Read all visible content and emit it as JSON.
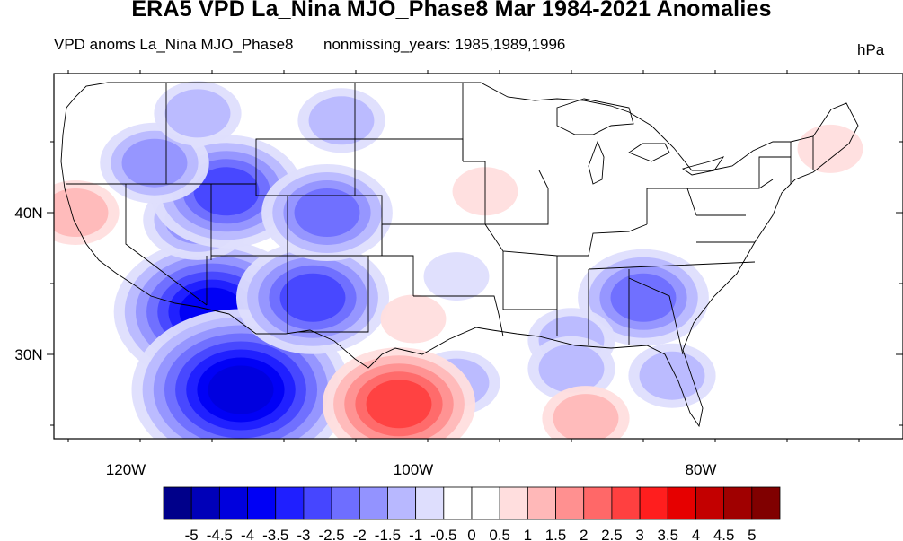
{
  "title": "ERA5 VPD La_Nina MJO_Phase8 Mar 1984-2021 Anomalies",
  "subtitle_left": "VPD anoms La_Nina MJO_Phase8",
  "subtitle_center": "nonmissing_years: 1985,1989,1996",
  "units": "hPa",
  "map": {
    "lon_range": [
      -125,
      -67
    ],
    "lat_range": [
      24,
      50
    ],
    "lat_labels": [
      {
        "lat": 40,
        "text": "40N"
      },
      {
        "lat": 30,
        "text": "30N"
      }
    ],
    "lon_labels": [
      {
        "lon": -120,
        "text": "120W"
      },
      {
        "lon": -100,
        "text": "100W"
      },
      {
        "lon": -80,
        "text": "80W"
      }
    ],
    "anomalies": [
      {
        "region": "Southwest / lower Colorado River",
        "lon": -114,
        "lat": 33,
        "value": -3.5
      },
      {
        "region": "Baja California peninsula",
        "lon": -112,
        "lat": 27.5,
        "value": -4
      },
      {
        "region": "Arizona / New Mexico border",
        "lon": -107,
        "lat": 34,
        "value": -2.5
      },
      {
        "region": "Nevada / Utah",
        "lon": -115,
        "lat": 39.5,
        "value": -1.5
      },
      {
        "region": "Northwest Utah",
        "lon": -113,
        "lat": 41.5,
        "value": -2.5
      },
      {
        "region": "Colorado Rockies",
        "lon": -106,
        "lat": 40,
        "value": -2
      },
      {
        "region": "Southern Oregon",
        "lon": -118,
        "lat": 43.5,
        "value": -1.5
      },
      {
        "region": "Washington / Idaho",
        "lon": -115,
        "lat": 47,
        "value": -1
      },
      {
        "region": "Wyoming / Montana",
        "lon": -105,
        "lat": 46.5,
        "value": -1
      },
      {
        "region": "Southeast US (Alabama / Georgia)",
        "lon": -84,
        "lat": 34,
        "value": -2
      },
      {
        "region": "Gulf Coast",
        "lon": -89,
        "lat": 31,
        "value": -1
      },
      {
        "region": "Northern Gulf of Mexico",
        "lon": -89,
        "lat": 29,
        "value": -1
      },
      {
        "region": "Florida",
        "lon": -82,
        "lat": 28.5,
        "value": -1
      },
      {
        "region": "South Texas coast",
        "lon": -97,
        "lat": 28,
        "value": -1
      },
      {
        "region": "Northeast Mexico (Coahuila)",
        "lon": -101,
        "lat": 26.5,
        "value": 2.5
      },
      {
        "region": "Central Gulf of Mexico",
        "lon": -88,
        "lat": 25.5,
        "value": 1
      },
      {
        "region": "Nebraska / Iowa",
        "lon": -95,
        "lat": 41.5,
        "value": 0.5
      },
      {
        "region": "Northern California coast",
        "lon": -123.5,
        "lat": 40,
        "value": 1
      },
      {
        "region": "Texas Panhandle",
        "lon": -100,
        "lat": 32.5,
        "value": 0.5
      },
      {
        "region": "Southern Great Plains",
        "lon": -97,
        "lat": 35.5,
        "value": -0.5
      },
      {
        "region": "Northern New England",
        "lon": -71,
        "lat": 44.5,
        "value": 0.5
      }
    ]
  },
  "colorbar": {
    "levels": [
      "-5",
      "-4.5",
      "-4",
      "-3.5",
      "-3",
      "-2.5",
      "-2",
      "-1.5",
      "-1",
      "-0.5",
      "0",
      "0.5",
      "1",
      "1.5",
      "2",
      "2.5",
      "3",
      "3.5",
      "4",
      "4.5",
      "5"
    ],
    "colors": [
      "#00008a",
      "#0000b8",
      "#0000dd",
      "#0000f5",
      "#1f1fff",
      "#4646ff",
      "#6e6eff",
      "#9393ff",
      "#b8b8ff",
      "#dedefd",
      "#ffffff",
      "#ffffff",
      "#ffdede",
      "#ffb8b8",
      "#ff9090",
      "#ff6868",
      "#ff4040",
      "#ff1e1e",
      "#e60000",
      "#c30000",
      "#a00000",
      "#800000"
    ]
  }
}
